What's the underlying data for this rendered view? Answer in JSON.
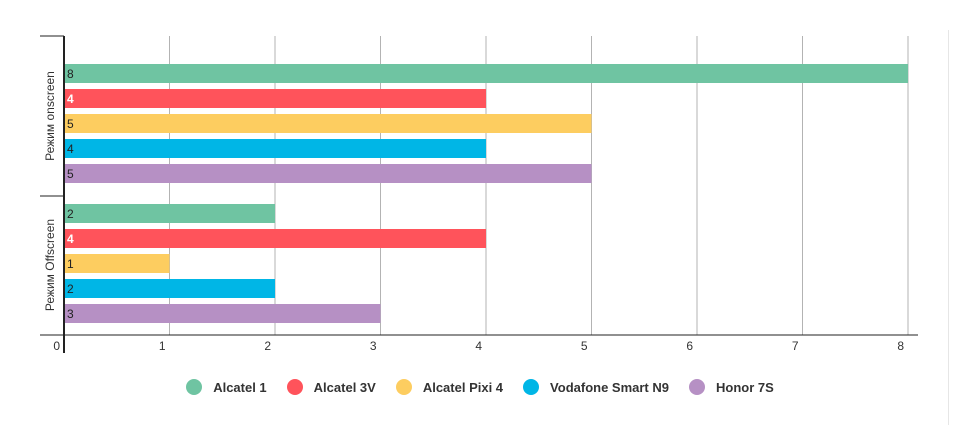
{
  "chart_data": {
    "type": "bar",
    "orientation": "horizontal",
    "categories": [
      "Режим onscreen",
      "Режим Offscreen"
    ],
    "series": [
      {
        "name": "Alcatel 1",
        "color": "#6fc4a2",
        "values": [
          8,
          2
        ]
      },
      {
        "name": "Alcatel 3V",
        "color": "#ff535b",
        "values": [
          4,
          4
        ]
      },
      {
        "name": "Alcatel Pixi 4",
        "color": "#fdcd60",
        "values": [
          5,
          1
        ]
      },
      {
        "name": "Vodafone Smart N9",
        "color": "#00b6e6",
        "values": [
          4,
          2
        ]
      },
      {
        "name": "Honor 7S",
        "color": "#b690c4",
        "values": [
          5,
          3
        ]
      }
    ],
    "xlim": [
      0,
      8
    ],
    "x_ticks": [
      "0",
      "1",
      "2",
      "3",
      "4",
      "5",
      "6",
      "7",
      "8"
    ],
    "grid": true,
    "legend_position": "bottom",
    "data_labels": true
  }
}
